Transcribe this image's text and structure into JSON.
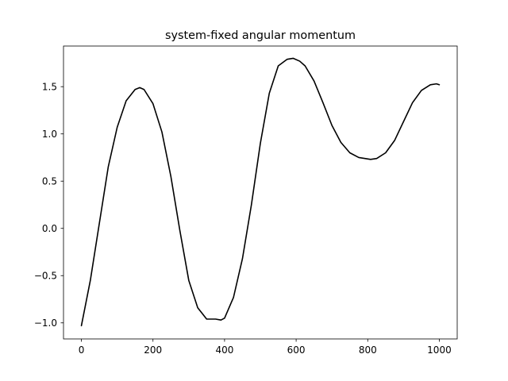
{
  "chart_data": {
    "type": "line",
    "title": "system-fixed angular momentum",
    "xlabel": "",
    "ylabel": "",
    "xlim": [
      -50,
      1050
    ],
    "ylim": [
      -1.17,
      1.93
    ],
    "grid": false,
    "x_ticks": [
      0,
      200,
      400,
      600,
      800,
      1000
    ],
    "x_tick_labels": [
      "0",
      "200",
      "400",
      "600",
      "800",
      "1000"
    ],
    "y_ticks": [
      -1.0,
      -0.5,
      0.0,
      0.5,
      1.0,
      1.5
    ],
    "y_tick_labels": [
      "−1.0",
      "−0.5",
      "0.0",
      "0.5",
      "1.0",
      "1.5"
    ],
    "series": [
      {
        "color": "#000000",
        "x": [
          0,
          25,
          50,
          75,
          100,
          125,
          150,
          163,
          175,
          200,
          225,
          250,
          275,
          300,
          325,
          350,
          375,
          390,
          400,
          425,
          450,
          475,
          500,
          525,
          550,
          575,
          592,
          610,
          625,
          650,
          675,
          700,
          725,
          750,
          775,
          808,
          825,
          850,
          875,
          900,
          925,
          950,
          975,
          992,
          1000
        ],
        "y": [
          -1.03,
          -0.55,
          0.05,
          0.65,
          1.07,
          1.35,
          1.47,
          1.49,
          1.47,
          1.32,
          1.02,
          0.55,
          -0.02,
          -0.55,
          -0.84,
          -0.96,
          -0.96,
          -0.97,
          -0.95,
          -0.73,
          -0.32,
          0.25,
          0.9,
          1.43,
          1.72,
          1.79,
          1.8,
          1.77,
          1.72,
          1.56,
          1.33,
          1.09,
          0.91,
          0.8,
          0.75,
          0.73,
          0.74,
          0.8,
          0.93,
          1.13,
          1.33,
          1.46,
          1.52,
          1.53,
          1.52
        ]
      }
    ]
  }
}
